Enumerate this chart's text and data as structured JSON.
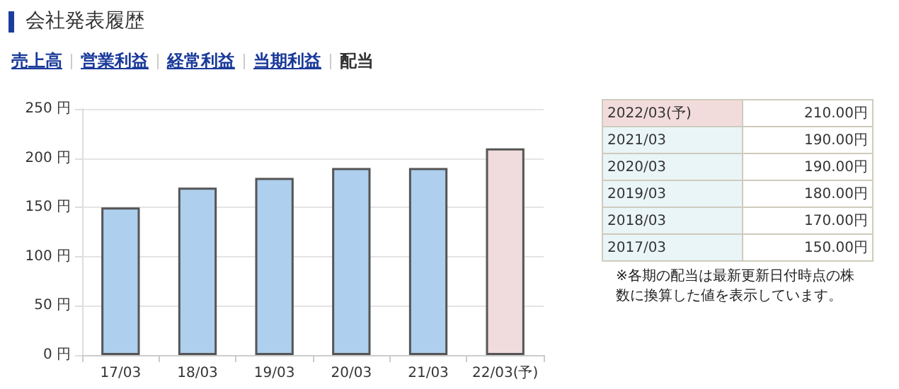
{
  "chart_data": [
    {
      "type": "bar",
      "title": "会社発表履歴",
      "annotations": [
        "売上高",
        "営業利益",
        "経常利益",
        "当期利益",
        "配当"
      ],
      "categories": [
        "17/03",
        "18/03",
        "19/03",
        "20/03",
        "21/03",
        "22/03(予)"
      ],
      "values": [
        150,
        170,
        180,
        190,
        190,
        210
      ],
      "colors": [
        "#aecfee",
        "#aecfee",
        "#aecfee",
        "#aecfee",
        "#aecfee",
        "#f0dcdc"
      ],
      "ylim": [
        0,
        250
      ],
      "yticks": [
        {
          "value": 0,
          "label": "0 円"
        },
        {
          "value": 50,
          "label": "50 円"
        },
        {
          "value": 100,
          "label": "100 円"
        },
        {
          "value": 150,
          "label": "150 円"
        },
        {
          "value": 200,
          "label": "200 円"
        },
        {
          "value": 250,
          "label": "250 円"
        }
      ],
      "grid": "y"
    },
    {
      "type": "other",
      "categories": [
        "2022/03(予)",
        "2021/03",
        "2020/03",
        "2019/03",
        "2018/03",
        "2017/03"
      ],
      "value_labels": [
        "210.00円",
        "190.00円",
        "190.00円",
        "180.00円",
        "170.00円",
        "150.00円"
      ],
      "colors": [
        "#f2dcdb",
        "#eaf5f7",
        "#eaf5f7",
        "#eaf5f7",
        "#eaf5f7",
        "#eaf5f7"
      ],
      "annotations": [
        "※各期の配当は最新更新日付時点の株数に換算した値を表示しています。"
      ]
    }
  ]
}
